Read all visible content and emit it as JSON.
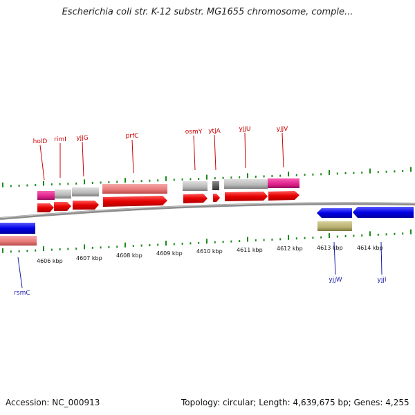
{
  "title": "Escherichia coli str. K-12 substr. MG1655 chromosome, comple...",
  "footer": {
    "accession": "Accession: NC_000913",
    "stats": "Topology: circular; Length: 4,639,675 bp; Genes: 4,255"
  },
  "colors": {
    "forward_gene": "#e60000",
    "reverse_gene": "#0000e6",
    "forward_label": "#cc0000",
    "reverse_label": "#1a1aaa",
    "tick": "#1a8a1a",
    "backbone": "#8c8c8c",
    "cds_light": "#e87878",
    "cds_grey": "#b8b8b8",
    "cds_magenta": "#e0208c",
    "cds_dark": "#555555",
    "cds_khaki": "#b8b070"
  },
  "kbp_labels": [
    "4606 kbp",
    "4607 kbp",
    "4608 kbp",
    "4609 kbp",
    "4610 kbp",
    "4611 kbp",
    "4612 kbp",
    "4613 kbp",
    "4614 kbp"
  ],
  "forward_genes": [
    "holD",
    "rimI",
    "yjjG",
    "prfC",
    "osmY",
    "ytjA",
    "yjjU",
    "yjjV"
  ],
  "reverse_genes": [
    "rsmC",
    "yjjW",
    "yjjI"
  ]
}
